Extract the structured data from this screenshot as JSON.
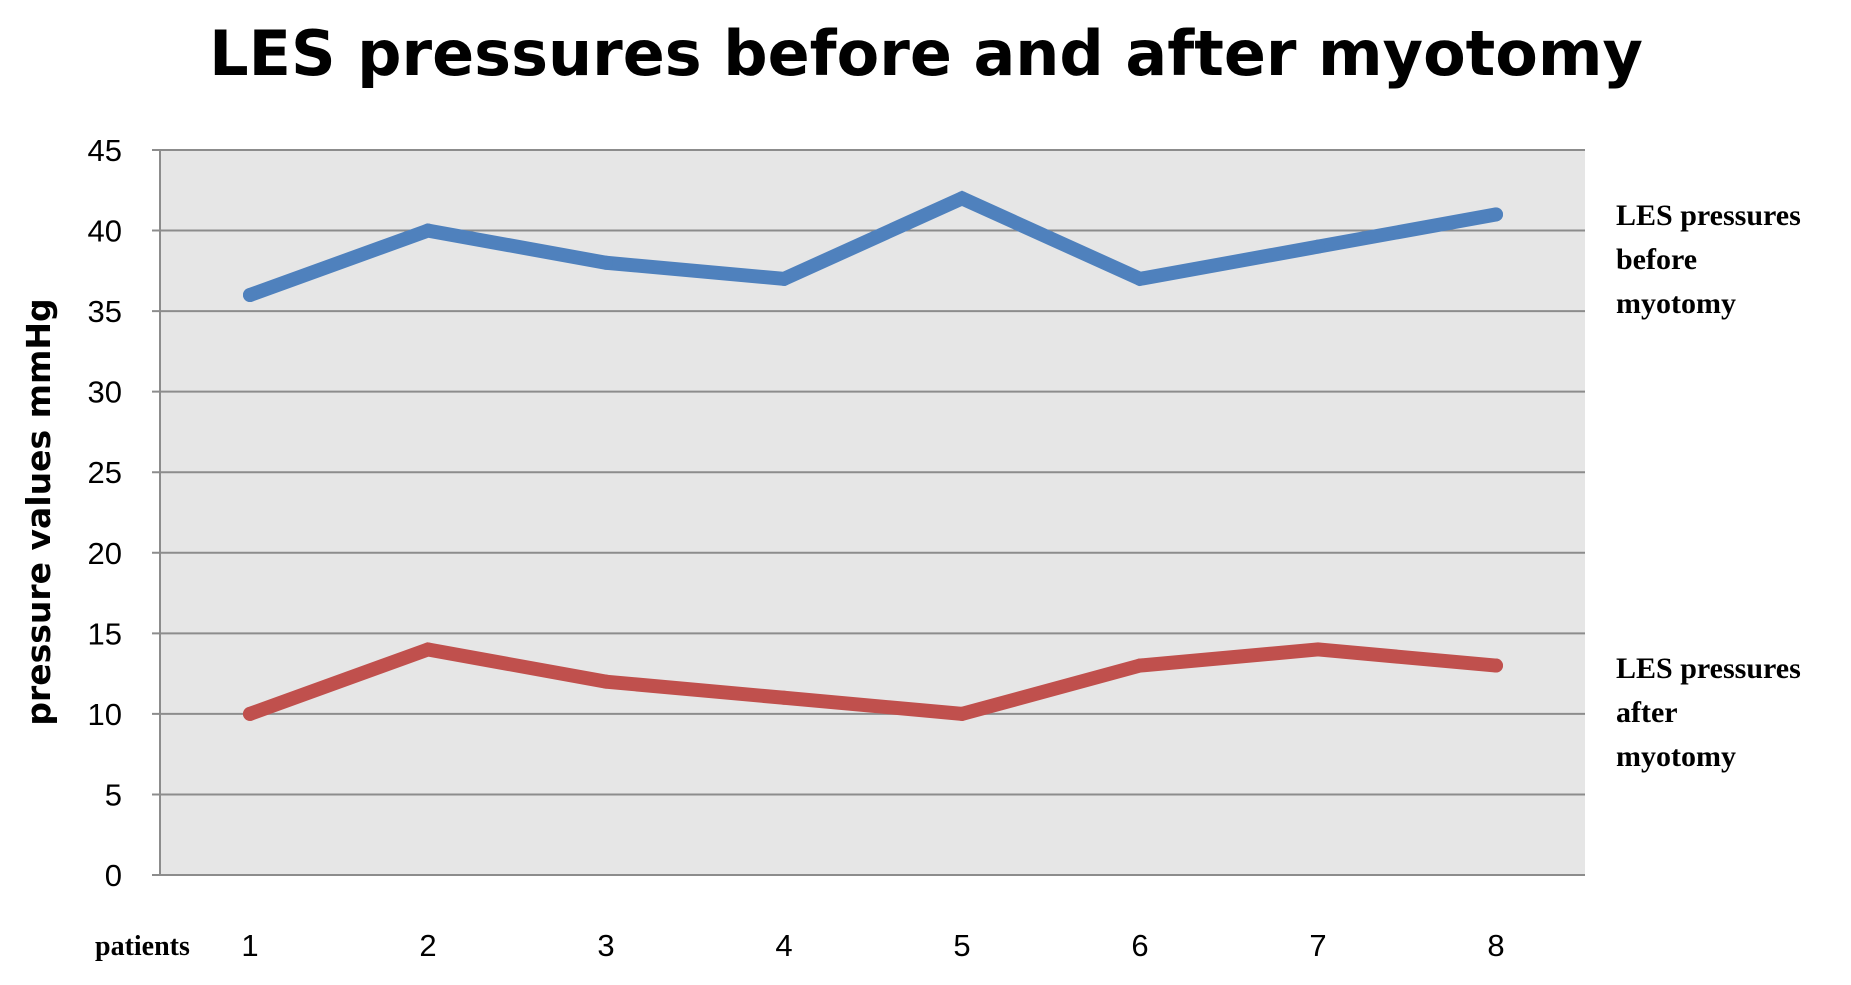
{
  "chart_data": {
    "type": "line",
    "title": "LES pressures before and after myotomy",
    "xlabel": "patients",
    "ylabel": "pressure values mmHg",
    "categories": [
      "1",
      "2",
      "3",
      "4",
      "5",
      "6",
      "7",
      "8"
    ],
    "ylim": [
      0,
      45
    ],
    "yticks": [
      "0",
      "5",
      "10",
      "15",
      "20",
      "25",
      "30",
      "35",
      "40",
      "45"
    ],
    "grid": true,
    "legend_position": "right",
    "series": [
      {
        "name_lines": [
          "LES pressures",
          "before",
          "myotomy"
        ],
        "color": "#4f81bd",
        "values": [
          36,
          40,
          38,
          37,
          42,
          37,
          39,
          41
        ]
      },
      {
        "name_lines": [
          "LES pressures",
          "after",
          "myotomy"
        ],
        "color": "#c0504d",
        "values": [
          10,
          14,
          12,
          11,
          10,
          13,
          14,
          13
        ]
      }
    ]
  },
  "colors": {
    "plot_background": "#e6e6e6",
    "gridline": "#8c8c8c",
    "axis": "#8c8c8c"
  }
}
